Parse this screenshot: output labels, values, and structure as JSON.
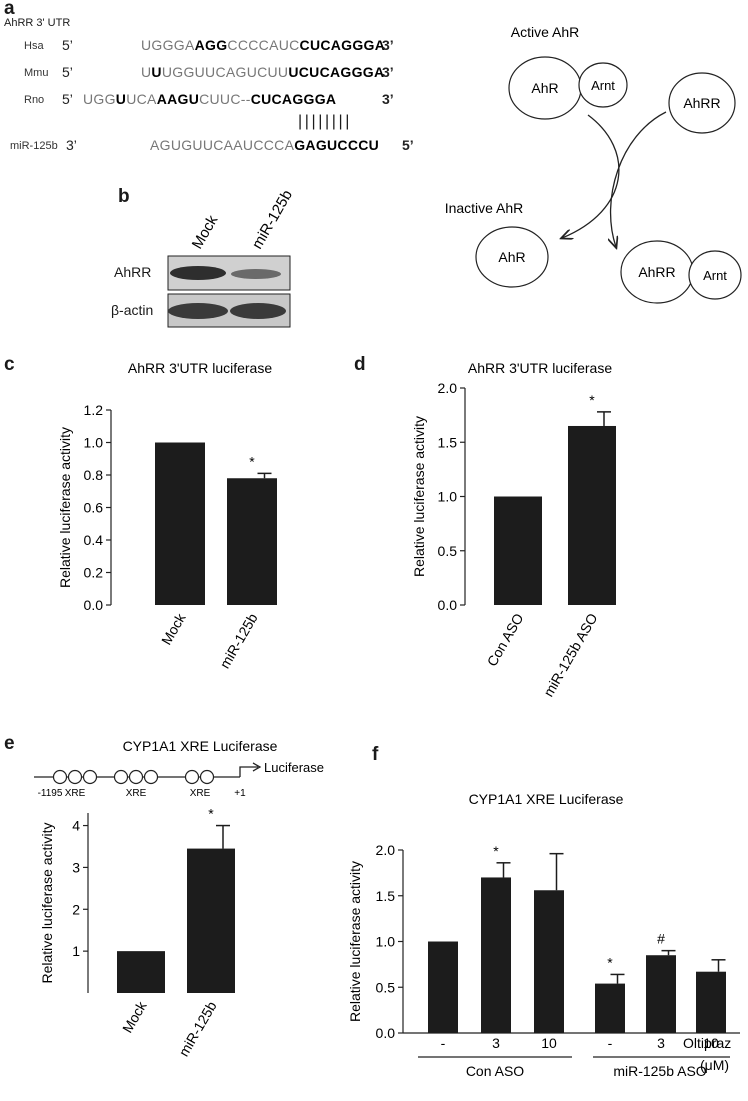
{
  "panel_a": {
    "letter": "a",
    "header": "AhRR 3' UTR",
    "rows": [
      {
        "species": "Hsa",
        "five": "5’",
        "three": "3’",
        "segments": [
          {
            "t": "UGGGA",
            "s": "g"
          },
          {
            "t": "AGG",
            "s": "b"
          },
          {
            "t": "CCCCAUC",
            "s": "g"
          },
          {
            "t": "CUCAGGGA",
            "s": "b"
          }
        ]
      },
      {
        "species": "Mmu",
        "five": "5’",
        "three": "3’",
        "segments": [
          {
            "t": "U",
            "s": "g"
          },
          {
            "t": "U",
            "s": "b"
          },
          {
            "t": "UGGUUCAGUCUU",
            "s": "g"
          },
          {
            "t": "UCUCAGGGA",
            "s": "b"
          }
        ]
      },
      {
        "species": "Rno",
        "five": "5’",
        "three": "3’",
        "segments": [
          {
            "t": "UGG",
            "s": "g"
          },
          {
            "t": "U",
            "s": "b"
          },
          {
            "t": "UCA",
            "s": "g"
          },
          {
            "t": "AAGU",
            "s": "b"
          },
          {
            "t": "CUUC--",
            "s": "g"
          },
          {
            "t": "CUCAGGGA",
            "s": "b"
          }
        ]
      },
      {
        "species": "miR-125b",
        "five": "3’",
        "three": "5’",
        "segments": [
          {
            "t": "AGUGUUCAAUCCCA",
            "s": "g"
          },
          {
            "t": "GAGUCCCU",
            "s": "b"
          }
        ]
      }
    ],
    "pairing": "||||||||",
    "diagram": {
      "active_label": "Active AhR",
      "inactive_label": "Inactive AhR",
      "ahr": "AhR",
      "arnt": "Arnt",
      "ahrr": "AhRR"
    }
  },
  "panel_b": {
    "letter": "b",
    "lanes": [
      "Mock",
      "miR-125b"
    ],
    "bands": [
      "AhRR",
      "β-actin"
    ]
  },
  "chart_data": [
    {
      "panel": "c",
      "type": "bar",
      "title": "AhRR 3'UTR luciferase",
      "ylabel": "Relative luciferase activity",
      "categories": [
        "Mock",
        "miR-125b"
      ],
      "values": [
        1.0,
        0.78
      ],
      "errors": [
        0,
        0.03
      ],
      "marks": [
        "",
        "*"
      ],
      "ylim": [
        0,
        1.2
      ],
      "yticks": [
        "0.0",
        "0.2",
        "0.4",
        "0.6",
        "0.8",
        "1.0",
        "1.2"
      ]
    },
    {
      "panel": "d",
      "type": "bar",
      "title": "AhRR 3'UTR luciferase",
      "ylabel": "Relative luciferase activity",
      "categories": [
        "Con ASO",
        "miR-125b ASO"
      ],
      "values": [
        1.0,
        1.65
      ],
      "errors": [
        0,
        0.13
      ],
      "marks": [
        "",
        "*"
      ],
      "ylim": [
        0,
        2.0
      ],
      "yticks": [
        "0.0",
        "0.5",
        "1.0",
        "1.5",
        "2.0"
      ]
    },
    {
      "panel": "e",
      "type": "bar",
      "title": "CYP1A1 XRE Luciferase",
      "ylabel": "Relative luciferase activity",
      "categories": [
        "Mock",
        "miR-125b"
      ],
      "values": [
        1.0,
        3.45
      ],
      "errors": [
        0,
        0.55
      ],
      "marks": [
        "",
        "*"
      ],
      "ylim": [
        0,
        4.3
      ],
      "yticks": [
        "1",
        "2",
        "3",
        "4"
      ],
      "ytick_values": [
        1,
        2,
        3,
        4
      ],
      "promoter": {
        "start": "-1195",
        "end": "+1",
        "element": "XRE",
        "reporter": "Luciferase"
      }
    },
    {
      "panel": "f",
      "type": "bar",
      "title": "CYP1A1 XRE Luciferase",
      "ylabel": "Relative luciferase activity",
      "categories": [
        "-",
        "3",
        "10",
        "-",
        "3",
        "10"
      ],
      "values": [
        1.0,
        1.7,
        1.56,
        0.54,
        0.85,
        0.67
      ],
      "errors": [
        0,
        0.16,
        0.4,
        0.1,
        0.05,
        0.13
      ],
      "marks": [
        "",
        "*",
        "",
        "*",
        "#",
        ""
      ],
      "ylim": [
        0,
        2.0
      ],
      "yticks": [
        "0.0",
        "0.5",
        "1.0",
        "1.5",
        "2.0"
      ],
      "treatment_label": "Oltipraz",
      "unit_label": "(μM)",
      "groups": [
        "Con ASO",
        "miR-125b ASO"
      ]
    }
  ]
}
